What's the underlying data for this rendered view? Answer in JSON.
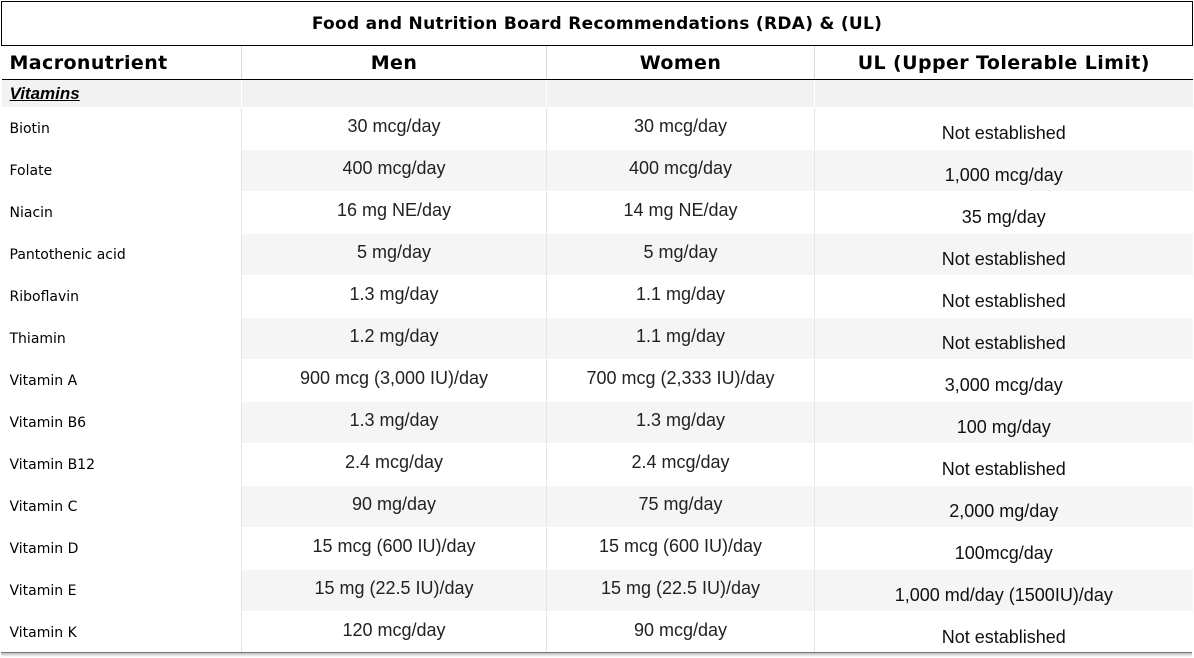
{
  "table": {
    "title": "Food and Nutrition Board Recommendations (RDA) & (UL)",
    "headers": {
      "name": "Macronutrient",
      "men": "Men",
      "women": "Women",
      "ul": "UL (Upper Tolerable Limit)"
    },
    "section_label": "Vitamins",
    "rows": [
      {
        "name": "Biotin",
        "men": "30 mcg/day",
        "women": "30 mcg/day",
        "ul": "Not established"
      },
      {
        "name": "Folate",
        "men": "400 mcg/day",
        "women": "400 mcg/day",
        "ul": "1,000 mcg/day"
      },
      {
        "name": "Niacin",
        "men": "16 mg NE/day",
        "women": "14 mg NE/day",
        "ul": "35 mg/day"
      },
      {
        "name": "Pantothenic acid",
        "men": "5 mg/day",
        "women": "5 mg/day",
        "ul": "Not established"
      },
      {
        "name": "Riboflavin",
        "men": "1.3 mg/day",
        "women": "1.1 mg/day",
        "ul": "Not established"
      },
      {
        "name": "Thiamin",
        "men": "1.2 mg/day",
        "women": "1.1 mg/day",
        "ul": "Not established"
      },
      {
        "name": "Vitamin A",
        "men": "900 mcg (3,000 IU)/day",
        "women": "700 mcg (2,333 IU)/day",
        "ul": "3,000 mcg/day"
      },
      {
        "name": "Vitamin B6",
        "men": "1.3 mg/day",
        "women": "1.3 mg/day",
        "ul": "100 mg/day"
      },
      {
        "name": "Vitamin B12",
        "men": "2.4 mcg/day",
        "women": "2.4 mcg/day",
        "ul": "Not established"
      },
      {
        "name": "Vitamin C",
        "men": "90 mg/day",
        "women": "75 mg/day",
        "ul": "2,000 mg/day"
      },
      {
        "name": "Vitamin D",
        "men": "15 mcg (600 IU)/day",
        "women": "15 mcg (600 IU)/day",
        "ul": "100mcg/day"
      },
      {
        "name": "Vitamin E",
        "men": "15 mg (22.5 IU)/day",
        "women": "15 mg (22.5 IU)/day",
        "ul": "1,000 md/day (1500IU)/day"
      },
      {
        "name": "Vitamin K",
        "men": "120 mcg/day",
        "women": "90 mcg/day",
        "ul": "Not established"
      }
    ]
  }
}
